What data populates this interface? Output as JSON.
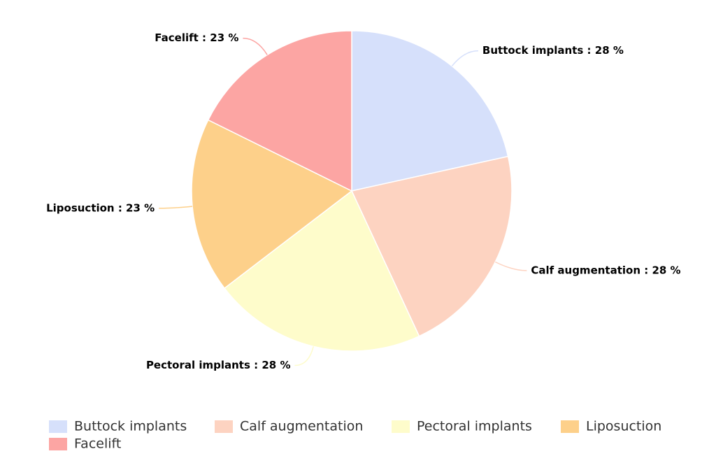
{
  "chart_data": {
    "type": "pie",
    "categories": [
      "Buttock implants",
      "Calf augmentation",
      "Pectoral implants",
      "Liposuction",
      "Facelift"
    ],
    "values": [
      28,
      28,
      28,
      23,
      23
    ],
    "value_labels": [
      "Buttock implants : 28 %",
      "Calf augmentation : 28 %",
      "Pectoral implants : 28 %",
      "Liposuction : 23 %",
      "Facelift : 23 %"
    ],
    "colors": [
      "#d6e0fb",
      "#fdd3c1",
      "#fefccb",
      "#fdd08a",
      "#fca5a3"
    ],
    "legend": "bottom"
  }
}
